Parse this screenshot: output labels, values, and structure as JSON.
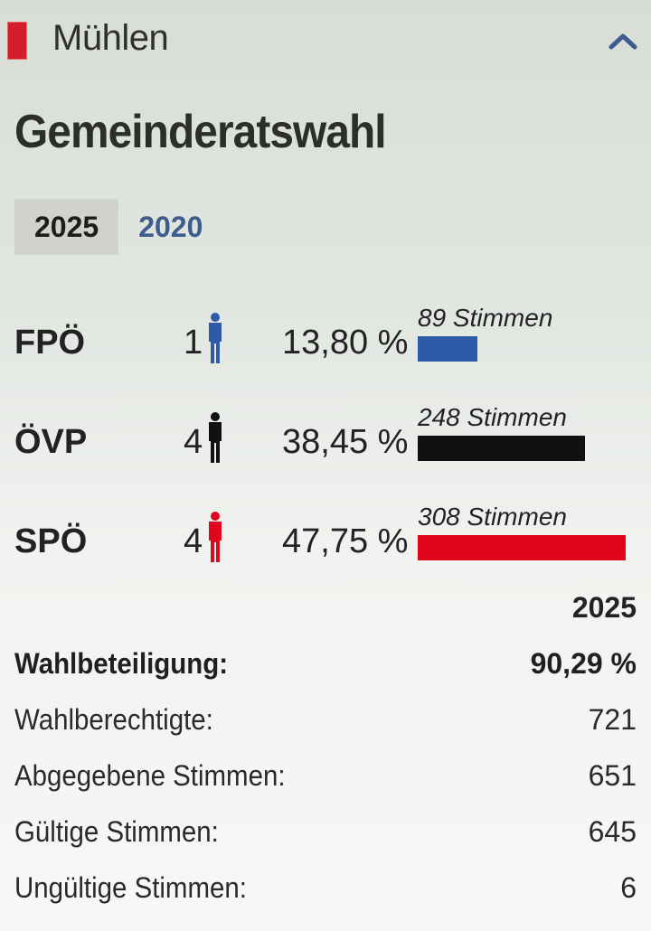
{
  "header": {
    "municipality": "Mühlen",
    "marker_color": "#d41f2a",
    "collapse_icon": "chevron-up-icon"
  },
  "title": "Gemeinderatswahl",
  "year_tabs": [
    {
      "label": "2025",
      "active": true
    },
    {
      "label": "2020",
      "active": false
    }
  ],
  "parties": [
    {
      "name": "FPÖ",
      "seats": "1",
      "percent": "13,80 %",
      "votes_label": "89 Stimmen",
      "votes": 89,
      "color": "#2e5aa8"
    },
    {
      "name": "ÖVP",
      "seats": "4",
      "percent": "38,45 %",
      "votes_label": "248 Stimmen",
      "votes": 248,
      "color": "#111111"
    },
    {
      "name": "SPÖ",
      "seats": "4",
      "percent": "47,75 %",
      "votes_label": "308 Stimmen",
      "votes": 308,
      "color": "#e0061d"
    }
  ],
  "stats": {
    "year": "2025",
    "rows": [
      {
        "label": "Wahlbeteiligung:",
        "value": "90,29 %",
        "strong": true
      },
      {
        "label": "Wahlberechtigte:",
        "value": "721",
        "strong": false
      },
      {
        "label": "Abgegebene Stimmen:",
        "value": "651",
        "strong": false
      },
      {
        "label": "Gültige Stimmen:",
        "value": "645",
        "strong": false
      },
      {
        "label": "Ungültige Stimmen:",
        "value": "6",
        "strong": false
      }
    ]
  }
}
